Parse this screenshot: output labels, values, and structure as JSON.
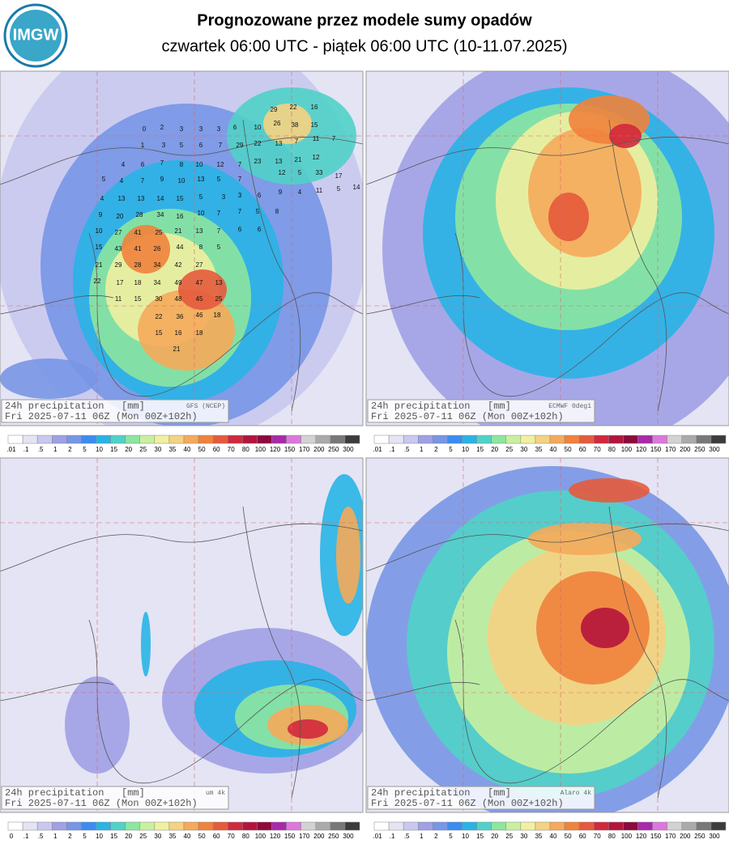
{
  "header": {
    "logo": "IMGW",
    "title": "Prognozowane przez modele sumy opadów",
    "subtitle": "czwartek 06:00 UTC - piątek 06:00 UTC (10-11.07.2025)"
  },
  "panels": [
    {
      "caption": "24h precipitation   [mm]",
      "model": "GFS (NCEP)",
      "valid": "Fri 2025-07-11 06Z (Mon 00Z+102h)",
      "colorbar": [
        ".01",
        ".1",
        ".5",
        "1",
        "2",
        "5",
        "10",
        "15",
        "20",
        "25",
        "30",
        "35",
        "40",
        "50",
        "60",
        "70",
        "80",
        "100",
        "120",
        "150",
        "170",
        "200",
        "250",
        "300"
      ]
    },
    {
      "caption": "24h precipitation   [mm]",
      "model": "ECMWF 0deg1",
      "valid": "Fri 2025-07-11 06Z (Mon 00Z+102h)",
      "colorbar": [
        ".01",
        ".1",
        ".5",
        "1",
        "2",
        "5",
        "10",
        "15",
        "20",
        "25",
        "30",
        "35",
        "40",
        "50",
        "60",
        "70",
        "80",
        "100",
        "120",
        "150",
        "170",
        "200",
        "250",
        "300"
      ]
    },
    {
      "caption": "24h precipitation   [mm]",
      "model": "um 4k",
      "valid": "Fri 2025-07-11 06Z (Mon 00Z+102h)",
      "colorbar": [
        "0",
        ".1",
        ".5",
        "1",
        "2",
        "5",
        "10",
        "15",
        "20",
        "25",
        "30",
        "35",
        "40",
        "50",
        "60",
        "70",
        "80",
        "100",
        "120",
        "150",
        "170",
        "200",
        "250",
        "300"
      ]
    },
    {
      "caption": "24h precipitation   [mm]",
      "model": "Alaro 4k",
      "valid": "Fri 2025-07-11 06Z (Mon 00Z+102h)",
      "colorbar": [
        ".01",
        ".1",
        ".5",
        "1",
        "2",
        "5",
        "10",
        "15",
        "20",
        "25",
        "30",
        "35",
        "40",
        "50",
        "60",
        "70",
        "80",
        "100",
        "120",
        "150",
        "170",
        "200",
        "250",
        "300"
      ]
    }
  ],
  "colorbar_colors": [
    "#ffffff",
    "#e4e4f4",
    "#c8c8f0",
    "#a0a0e6",
    "#7896e6",
    "#3c8cf0",
    "#28b4e6",
    "#50d2c8",
    "#8ce6a0",
    "#c8f0a0",
    "#f0f0a0",
    "#f5d282",
    "#f5aa5a",
    "#f0823c",
    "#e65a3c",
    "#d2283c",
    "#b4143c",
    "#8c0a3c",
    "#aa28aa",
    "#dc78dc",
    "#d2d2d2",
    "#aaaaaa",
    "#787878",
    "#3c3c3c"
  ],
  "gfs_values": [
    29,
    22,
    16,
    0,
    2,
    3,
    3,
    3,
    6,
    10,
    26,
    38,
    15,
    1,
    3,
    5,
    6,
    7,
    29,
    22,
    13,
    7,
    11,
    7,
    4,
    6,
    7,
    8,
    10,
    12,
    7,
    23,
    13,
    21,
    12,
    5,
    4,
    7,
    9,
    10,
    13,
    5,
    7,
    12,
    5,
    33,
    17,
    4,
    13,
    13,
    14,
    15,
    5,
    3,
    3,
    6,
    9,
    4,
    11,
    5,
    14,
    9,
    20,
    28,
    34,
    16,
    10,
    7,
    7,
    5,
    8,
    10,
    27,
    41,
    25,
    21,
    13,
    7,
    6,
    6,
    15,
    43,
    41,
    26,
    44,
    8,
    5,
    21,
    29,
    28,
    34,
    42,
    27,
    22,
    17,
    18,
    34,
    49,
    47,
    13,
    11,
    15,
    30,
    48,
    45,
    25,
    22,
    36,
    46,
    18,
    15,
    16,
    18,
    21
  ]
}
